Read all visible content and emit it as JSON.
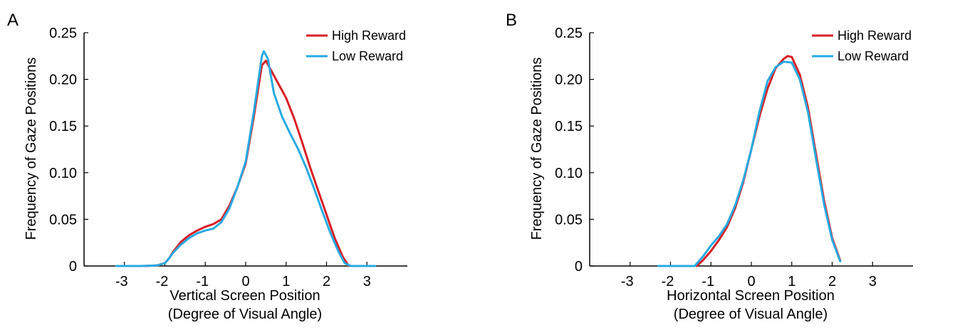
{
  "colors": {
    "high_reward": "#d81f26",
    "low_reward": "#27aae1",
    "axis": "#000000"
  },
  "chart_data": [
    {
      "type": "line",
      "panel_label": "A",
      "xlabel": "Vertical Screen Position",
      "xlabel_line2": "(Degree of Visual Angle)",
      "ylabel": "Frequency of Gaze Positions",
      "xlim": [
        -4,
        4
      ],
      "ylim": [
        0,
        0.25
      ],
      "xticks": [
        -3,
        -2,
        -1,
        0,
        1,
        2,
        3
      ],
      "yticks": [
        0,
        0.05,
        0.1,
        0.15,
        0.2,
        0.25
      ],
      "ytick_labels": [
        "0",
        "0.05",
        "0.10",
        "0.15",
        "0.20",
        "0.25"
      ],
      "legend_position": "top-right",
      "series": [
        {
          "name": "High Reward",
          "color_key": "high_reward",
          "x": [
            -2.5,
            -2.2,
            -2.0,
            -1.9,
            -1.8,
            -1.6,
            -1.4,
            -1.2,
            -1.0,
            -0.8,
            -0.6,
            -0.4,
            -0.2,
            0.0,
            0.2,
            0.4,
            0.5,
            0.6,
            0.8,
            1.0,
            1.2,
            1.4,
            1.6,
            1.8,
            2.0,
            2.2,
            2.4,
            2.55
          ],
          "y": [
            0.0,
            0.0005,
            0.003,
            0.008,
            0.015,
            0.026,
            0.033,
            0.038,
            0.042,
            0.045,
            0.05,
            0.065,
            0.085,
            0.11,
            0.16,
            0.215,
            0.22,
            0.212,
            0.196,
            0.18,
            0.158,
            0.132,
            0.105,
            0.08,
            0.055,
            0.03,
            0.01,
            0.0
          ]
        },
        {
          "name": "Low Reward",
          "color_key": "low_reward",
          "x": [
            -3.2,
            -2.6,
            -2.2,
            -2.0,
            -1.9,
            -1.8,
            -1.6,
            -1.4,
            -1.2,
            -1.0,
            -0.8,
            -0.6,
            -0.4,
            -0.2,
            0.0,
            0.2,
            0.4,
            0.45,
            0.55,
            0.7,
            0.9,
            1.1,
            1.3,
            1.5,
            1.7,
            1.9,
            2.1,
            2.3,
            2.45,
            2.6,
            3.2
          ],
          "y": [
            0.0,
            0.0,
            0.0005,
            0.003,
            0.008,
            0.014,
            0.023,
            0.03,
            0.035,
            0.038,
            0.04,
            0.047,
            0.062,
            0.085,
            0.112,
            0.165,
            0.225,
            0.23,
            0.222,
            0.185,
            0.16,
            0.142,
            0.125,
            0.105,
            0.082,
            0.058,
            0.035,
            0.015,
            0.003,
            0.0,
            0.0
          ]
        }
      ]
    },
    {
      "type": "line",
      "panel_label": "B",
      "xlabel": "Horizontal Screen Position",
      "xlabel_line2": "(Degree of Visual Angle)",
      "ylabel": "Frequency of Gaze Positions",
      "xlim": [
        -4,
        4
      ],
      "ylim": [
        0,
        0.25
      ],
      "xticks": [
        -3,
        -2,
        -1,
        0,
        1,
        2,
        3
      ],
      "yticks": [
        0,
        0.05,
        0.1,
        0.15,
        0.2,
        0.25
      ],
      "ytick_labels": [
        "0",
        "0.05",
        "0.10",
        "0.15",
        "0.20",
        "0.25"
      ],
      "legend_position": "top-right",
      "series": [
        {
          "name": "High Reward",
          "color_key": "high_reward",
          "x": [
            -1.35,
            -1.2,
            -1.0,
            -0.8,
            -0.6,
            -0.4,
            -0.2,
            0.0,
            0.2,
            0.4,
            0.6,
            0.8,
            0.9,
            1.0,
            1.2,
            1.4,
            1.6,
            1.8,
            2.0,
            2.2
          ],
          "y": [
            0.0,
            0.006,
            0.016,
            0.028,
            0.042,
            0.062,
            0.09,
            0.125,
            0.16,
            0.19,
            0.212,
            0.222,
            0.225,
            0.224,
            0.205,
            0.17,
            0.12,
            0.07,
            0.03,
            0.006
          ]
        },
        {
          "name": "Low Reward",
          "color_key": "low_reward",
          "x": [
            -2.3,
            -1.8,
            -1.4,
            -1.2,
            -1.0,
            -0.8,
            -0.6,
            -0.4,
            -0.2,
            0.0,
            0.2,
            0.4,
            0.6,
            0.8,
            1.0,
            1.2,
            1.4,
            1.6,
            1.8,
            2.0,
            2.2
          ],
          "y": [
            0.0,
            0.0,
            0.0,
            0.01,
            0.022,
            0.032,
            0.045,
            0.065,
            0.092,
            0.125,
            0.165,
            0.198,
            0.213,
            0.219,
            0.218,
            0.2,
            0.165,
            0.115,
            0.066,
            0.028,
            0.005
          ]
        }
      ]
    }
  ]
}
